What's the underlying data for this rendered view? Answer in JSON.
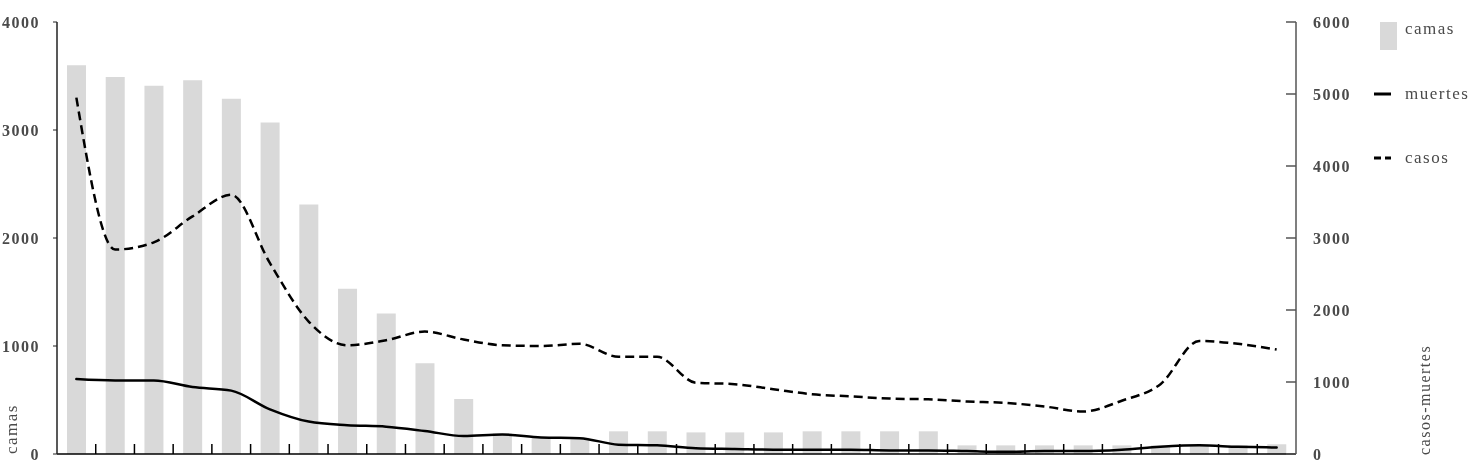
{
  "chart_data": {
    "type": "bar",
    "categories": [
      null,
      null,
      null,
      null,
      null,
      null,
      null,
      null,
      null,
      null,
      null,
      null,
      null,
      null,
      null,
      null,
      null,
      null,
      null,
      null,
      null,
      null,
      null,
      null,
      null,
      null,
      null,
      null,
      null,
      null,
      null,
      null
    ],
    "ylabel": "camas",
    "y2label": "casos-muertes",
    "ylim": [
      0,
      4000
    ],
    "yticks": [
      0,
      1000,
      2000,
      3000,
      4000
    ],
    "y2lim": [
      0,
      6000
    ],
    "y2ticks": [
      0,
      1000,
      2000,
      3000,
      4000,
      5000,
      6000
    ],
    "legend": "right",
    "series": [
      {
        "name": "camas",
        "color": "#d9d9d9",
        "values": [
          3600,
          3490,
          3410,
          3460,
          3290,
          3070,
          2310,
          1530,
          1300,
          840,
          510,
          190,
          150,
          150,
          210,
          210,
          200,
          200,
          200,
          210,
          210,
          210,
          210,
          80,
          80,
          80,
          80,
          80,
          80,
          80,
          80,
          90
        ]
      },
      {
        "name": "muertes",
        "type": "line",
        "axis": "y2",
        "color": "#000000",
        "line_style": "solid",
        "values": [
          1040,
          1020,
          1020,
          930,
          880,
          620,
          450,
          400,
          380,
          320,
          250,
          270,
          230,
          220,
          130,
          120,
          80,
          70,
          60,
          60,
          60,
          50,
          50,
          40,
          30,
          40,
          40,
          60,
          100,
          120,
          100,
          90
        ]
      },
      {
        "name": "casos",
        "type": "line",
        "axis": "y2",
        "color": "#000000",
        "line_style": "dashed",
        "values": [
          4950,
          2840,
          2940,
          3300,
          3600,
          2650,
          1840,
          1510,
          1580,
          1700,
          1590,
          1510,
          1500,
          1530,
          1350,
          1350,
          990,
          970,
          900,
          830,
          800,
          770,
          760,
          730,
          710,
          660,
          590,
          740,
          970,
          1570,
          1530,
          1450
        ]
      }
    ]
  }
}
